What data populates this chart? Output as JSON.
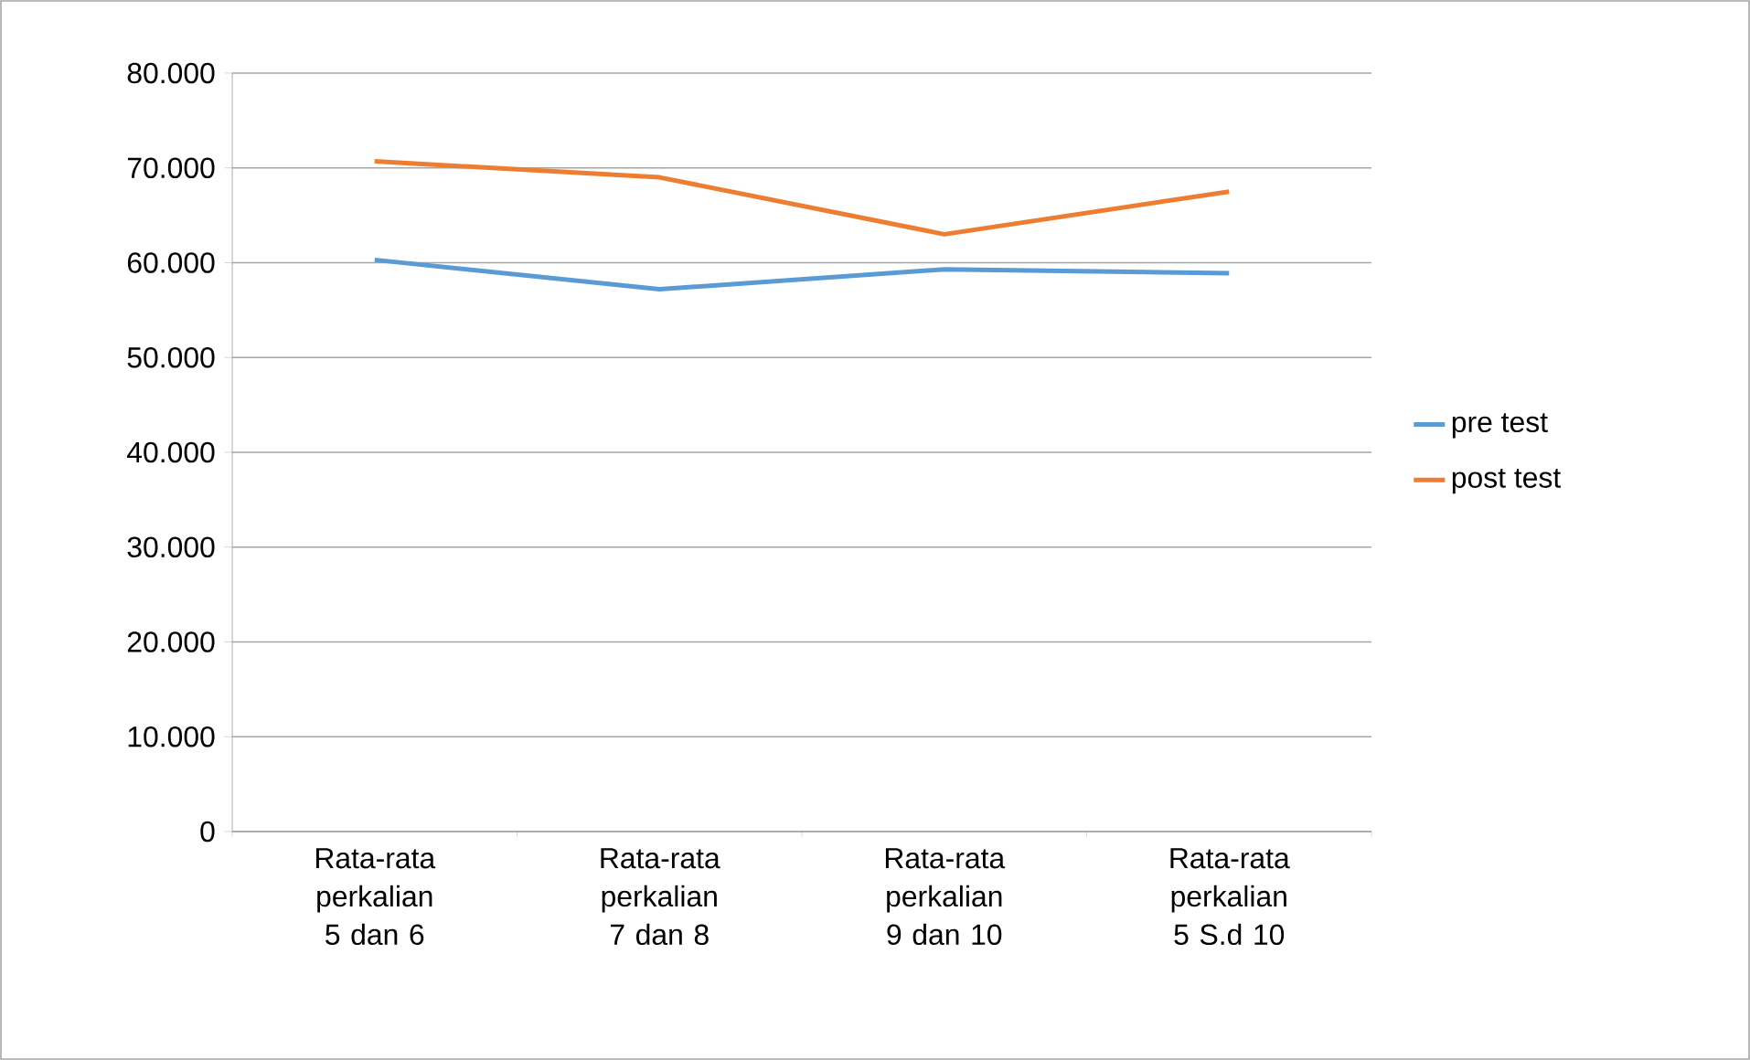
{
  "chart_data": {
    "type": "line",
    "categories": [
      "Rata-rata perkalian 5 dan 6",
      "Rata-rata perkalian 7 dan 8",
      "Rata-rata perkalian 9 dan 10",
      "Rata-rata perkalian 5 S.d 10"
    ],
    "series": [
      {
        "name": "pre test",
        "color": "#5b9bd5",
        "values": [
          60300,
          57200,
          59300,
          58900
        ]
      },
      {
        "name": "post test",
        "color": "#ed7d31",
        "values": [
          70700,
          69000,
          63000,
          67500
        ]
      }
    ],
    "ylim": [
      0,
      80000
    ],
    "yticks": [
      0,
      {
        "value": 10000,
        "label": "10.000"
      },
      {
        "value": 20000,
        "label": "20.000"
      },
      {
        "value": 30000,
        "label": "30.000"
      },
      {
        "value": 40000,
        "label": "40.000"
      },
      {
        "value": 50000,
        "label": "50.000"
      },
      {
        "value": 60000,
        "label": "60.000"
      },
      {
        "value": 70000,
        "label": "70.000"
      },
      {
        "value": 80000,
        "label": "80.000"
      }
    ],
    "grid": "y",
    "legend": "right",
    "marker": "none",
    "line_style": "solid"
  }
}
